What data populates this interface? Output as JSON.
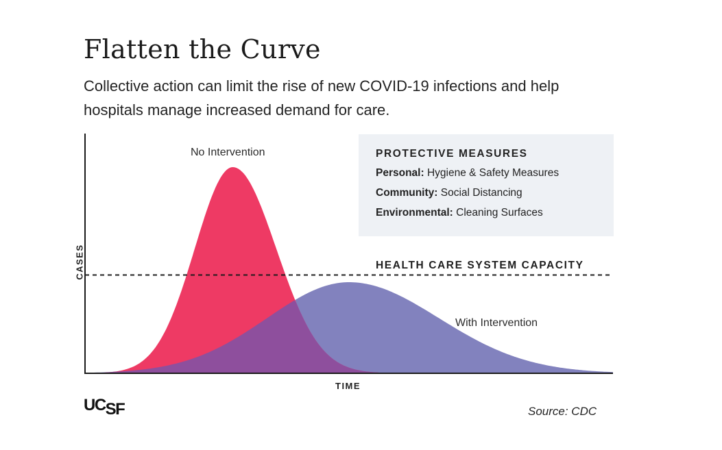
{
  "title": "Flatten the Curve",
  "subtitle": "Collective action can limit the rise of new COVID-19 infections and help hospitals manage increased demand for care.",
  "protective_measures": {
    "heading": "PROTECTIVE MEASURES",
    "items": [
      {
        "label": "Personal:",
        "value": "Hygiene & Safety Measures"
      },
      {
        "label": "Community:",
        "value": "Social Distancing"
      },
      {
        "label": "Environmental:",
        "value": "Cleaning Surfaces"
      }
    ]
  },
  "logo": {
    "prefix": "UC",
    "suffix": "SF"
  },
  "source": "Source: CDC",
  "colors": {
    "no_intervention": "#ee3a64",
    "with_intervention": "#8282be",
    "axis": "#1a1a1a",
    "panel": "#eef1f5"
  },
  "chart_data": {
    "type": "area",
    "xlabel": "TIME",
    "ylabel": "CASES",
    "xlim": [
      0,
      1
    ],
    "ylim": [
      0,
      1
    ],
    "grid": false,
    "series": [
      {
        "name": "No Intervention",
        "peak_x": 0.28,
        "peak_y": 0.86,
        "spread_left": 0.072,
        "spread_right": 0.082
      },
      {
        "name": "With Intervention",
        "peak_x": 0.5,
        "peak_y": 0.38,
        "spread_left": 0.155,
        "spread_right": 0.17
      }
    ],
    "reference_line": {
      "label": "HEALTH CARE SYSTEM CAPACITY",
      "y": 0.41,
      "style": "dashed"
    }
  }
}
